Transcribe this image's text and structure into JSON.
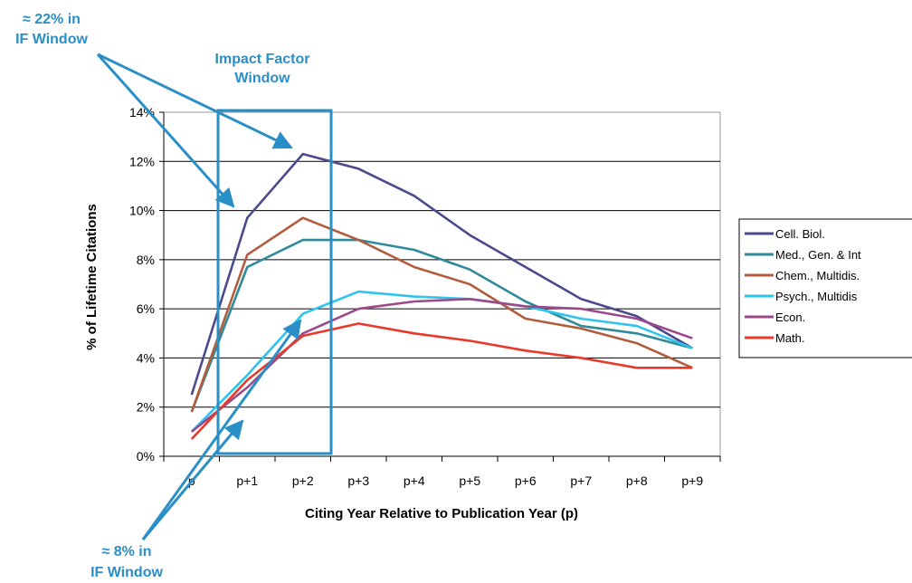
{
  "chart_data": {
    "type": "line",
    "categories": [
      "p",
      "p+1",
      "p+2",
      "p+3",
      "p+4",
      "p+5",
      "p+6",
      "p+7",
      "p+8",
      "p+9"
    ],
    "xlabel": "Citing Year Relative to Publication Year (p)",
    "ylabel": "%  of Lifetime Citations",
    "ylim": [
      0,
      14
    ],
    "yticks": [
      "0%",
      "2%",
      "4%",
      "6%",
      "8%",
      "10%",
      "12%",
      "14%"
    ],
    "grid": "horizontal",
    "legend_position": "right",
    "series": [
      {
        "name": "Cell. Biol.",
        "color": "#4b4a8c",
        "values": [
          2.5,
          9.7,
          12.3,
          11.7,
          10.6,
          9.0,
          7.7,
          6.4,
          5.7,
          4.4
        ]
      },
      {
        "name": "Med., Gen. & Int",
        "color": "#2f8a9a",
        "values": [
          1.8,
          7.7,
          8.8,
          8.8,
          8.4,
          7.6,
          6.3,
          5.3,
          5.0,
          4.4
        ]
      },
      {
        "name": "Chem., Multidis.",
        "color": "#b25c3e",
        "values": [
          1.8,
          8.2,
          9.7,
          8.8,
          7.7,
          7.0,
          5.6,
          5.2,
          4.6,
          3.6
        ]
      },
      {
        "name": "Psych., Multidis",
        "color": "#2fc3ee",
        "values": [
          1.0,
          3.3,
          5.8,
          6.7,
          6.5,
          6.4,
          6.1,
          5.6,
          5.3,
          4.4
        ]
      },
      {
        "name": "Econ.",
        "color": "#9a4a8a",
        "values": [
          1.0,
          2.8,
          5.0,
          6.0,
          6.3,
          6.4,
          6.1,
          6.0,
          5.6,
          4.8
        ]
      },
      {
        "name": "Math.",
        "color": "#e8392a",
        "values": [
          0.7,
          3.1,
          4.9,
          5.4,
          5.0,
          4.7,
          4.3,
          4.0,
          3.6,
          3.6
        ]
      }
    ],
    "annotations": [
      {
        "text_line1": "≈ 22% in",
        "text_line2": "IF Window"
      },
      {
        "text_line1": "Impact Factor",
        "text_line2": "Window"
      },
      {
        "text_line1": "≈ 8% in",
        "text_line2": "IF Window"
      }
    ],
    "annotation_color": "#2a8fc6"
  }
}
